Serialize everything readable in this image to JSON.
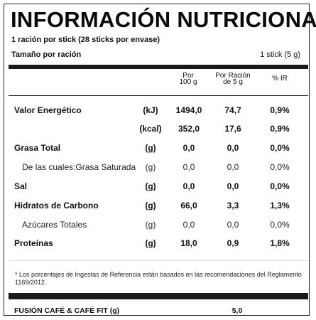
{
  "title": "INFORMACIÓN NUTRICIONAL",
  "serving": {
    "line1": "1 ración por stick (28 sticks por envase)",
    "size_label": "Tamaño por ración",
    "size_value": "1 stick (5 g)"
  },
  "headers": {
    "per100_line1": "Por",
    "per100_line2": "100 g",
    "perserving_line1": "Por Ración",
    "perserving_line2": "de 5 g",
    "ir": "% IR"
  },
  "rows": [
    {
      "label": "Valor Energético",
      "unit": "(kJ)",
      "per100": "1494,0",
      "perserving": "74,7",
      "ir": "0,9%"
    },
    {
      "label": "",
      "unit": "(kcal)",
      "per100": "352,0",
      "perserving": "17,6",
      "ir": "0,9%"
    },
    {
      "label": "Grasa Total",
      "unit": "(g)",
      "per100": "0,0",
      "perserving": "0,0",
      "ir": "0,0%"
    },
    {
      "label": "De las cuales:Grasa Saturada",
      "unit": "(g)",
      "per100": "0,0",
      "perserving": "0,0",
      "ir": "0,0%"
    },
    {
      "label": "Sal",
      "unit": "(g)",
      "per100": "0,0",
      "perserving": "0,0",
      "ir": "0,0%"
    },
    {
      "label": "Hidratos de Carbono",
      "unit": "(g)",
      "per100": "66,0",
      "perserving": "3,3",
      "ir": "1,3%"
    },
    {
      "label": "Azúcares Totales",
      "unit": "(g)",
      "per100": "0,0",
      "perserving": "0,0",
      "ir": "0,0%"
    },
    {
      "label": "Proteínas",
      "unit": "(g)",
      "per100": "18,0",
      "perserving": "0,9",
      "ir": "1,8%"
    }
  ],
  "footnote": "* Los porcentajes de Ingestas de Referencia están basados en las recomendaciones del Reglamento 1169/2012.",
  "footer": {
    "product": "FUSIÓN CAFÉ & CAFÉ FIT (g)",
    "value": "5,0"
  }
}
